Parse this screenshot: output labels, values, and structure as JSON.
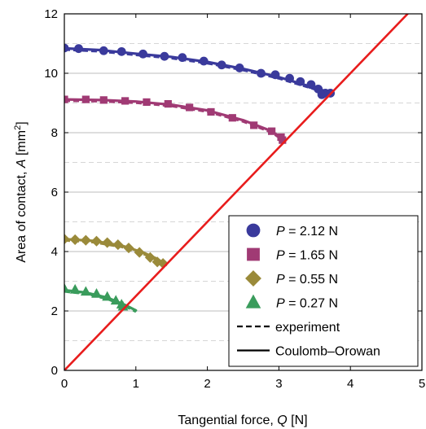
{
  "chart_data": {
    "type": "scatter",
    "xlabel": "Tangential force, Q [N]",
    "ylabel": "Area of contact, A [mm²]",
    "xlim": [
      0,
      5
    ],
    "ylim": [
      0,
      12
    ],
    "xticks": [
      0,
      1,
      2,
      3,
      4,
      5
    ],
    "yticks": [
      0,
      2,
      4,
      6,
      8,
      10,
      12
    ],
    "grid": {
      "major_y": "solid",
      "minor_y": "dashed"
    },
    "legend_placement": "bottom-right",
    "series": [
      {
        "name": "P = 2.12 N",
        "label_italic": "P",
        "label_rest": " = 2.12 N",
        "marker": "circle",
        "color": "#3a3a9c",
        "x": [
          0.0,
          0.2,
          0.55,
          0.8,
          1.1,
          1.4,
          1.65,
          1.95,
          2.2,
          2.45,
          2.75,
          2.95,
          3.15,
          3.3,
          3.45,
          3.55,
          3.65,
          3.6,
          3.72
        ],
        "y": [
          10.85,
          10.83,
          10.76,
          10.73,
          10.65,
          10.57,
          10.53,
          10.41,
          10.28,
          10.18,
          10.0,
          9.95,
          9.83,
          9.72,
          9.62,
          9.47,
          9.33,
          9.28,
          9.33
        ],
        "fit_x": [
          0.0,
          0.5,
          1.0,
          1.5,
          2.0,
          2.5,
          3.0,
          3.4,
          3.75
        ],
        "fit_y": [
          10.84,
          10.78,
          10.66,
          10.55,
          10.38,
          10.15,
          9.87,
          9.58,
          9.33
        ]
      },
      {
        "name": "P = 1.65 N",
        "label_italic": "P",
        "label_rest": " = 1.65 N",
        "marker": "square",
        "color": "#a03a74",
        "x": [
          0.0,
          0.3,
          0.55,
          0.85,
          1.15,
          1.45,
          1.75,
          2.05,
          2.35,
          2.65,
          2.9,
          3.03,
          3.05
        ],
        "y": [
          9.12,
          9.12,
          9.1,
          9.07,
          9.03,
          8.97,
          8.85,
          8.7,
          8.5,
          8.25,
          8.05,
          7.85,
          7.75
        ],
        "fit_x": [
          0.0,
          0.5,
          1.0,
          1.5,
          2.0,
          2.5,
          2.9,
          3.05
        ],
        "fit_y": [
          9.12,
          9.1,
          9.05,
          8.94,
          8.75,
          8.42,
          8.05,
          7.8
        ]
      },
      {
        "name": "P = 0.55 N",
        "label_italic": "P",
        "label_rest": " = 0.55 N",
        "marker": "diamond",
        "color": "#9a8a3a",
        "x": [
          0.0,
          0.15,
          0.3,
          0.45,
          0.6,
          0.75,
          0.9,
          1.05,
          1.2,
          1.3,
          1.38
        ],
        "y": [
          4.42,
          4.4,
          4.38,
          4.35,
          4.3,
          4.23,
          4.12,
          3.97,
          3.8,
          3.65,
          3.6
        ],
        "fit_x": [
          0.0,
          0.4,
          0.8,
          1.1,
          1.3,
          1.42
        ],
        "fit_y": [
          4.42,
          4.36,
          4.2,
          3.97,
          3.75,
          3.55
        ]
      },
      {
        "name": "P = 0.27 N",
        "label_italic": "P",
        "label_rest": " = 0.27 N",
        "marker": "triangle",
        "color": "#3a9c5c",
        "x": [
          0.0,
          0.15,
          0.3,
          0.45,
          0.6,
          0.72,
          0.8,
          0.82
        ],
        "y": [
          2.75,
          2.72,
          2.65,
          2.58,
          2.48,
          2.35,
          2.22,
          2.15
        ],
        "fit_x": [
          0.0,
          0.3,
          0.6,
          0.85,
          1.0
        ],
        "fit_y": [
          2.7,
          2.62,
          2.45,
          2.2,
          2.02
        ]
      }
    ],
    "reference_line": {
      "name": "Coulomb–Orowan",
      "color": "#e81c1c",
      "x": [
        0,
        5
      ],
      "y": [
        0,
        12.5
      ]
    },
    "legend": [
      {
        "italic": "P",
        "rest": " = 2.12 N",
        "marker": "circle",
        "color": "#3a3a9c"
      },
      {
        "italic": "P",
        "rest": " = 1.65 N",
        "marker": "square",
        "color": "#a03a74"
      },
      {
        "italic": "P",
        "rest": " = 0.55 N",
        "marker": "diamond",
        "color": "#9a8a3a"
      },
      {
        "italic": "P",
        "rest": " = 0.27 N",
        "marker": "triangle",
        "color": "#3a9c5c"
      },
      {
        "italic": "",
        "rest": "experiment",
        "line": "dashed",
        "color": "#000000"
      },
      {
        "italic": "",
        "rest": "Coulomb–Orowan",
        "line": "solid",
        "color": "#000000"
      }
    ]
  }
}
